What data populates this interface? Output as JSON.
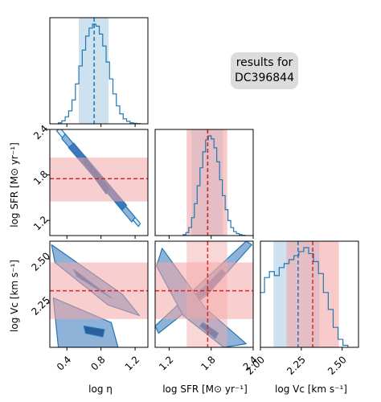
{
  "chart_data": {
    "type": "corner",
    "annotation": [
      "results for",
      "DC396844"
    ],
    "colors": {
      "posterior": "#1f77b4",
      "contour_fill": [
        "#dbe7f3",
        "#8fb2d8",
        "#3f78b9",
        "#2c5f9e"
      ],
      "reference": "#d62728",
      "reference_band": "#f4a6a6"
    },
    "parameters": [
      {
        "name": "log_eta",
        "label": "log η",
        "range": [
          0.2,
          1.35
        ],
        "ticks": [
          0.4,
          0.8,
          1.2
        ],
        "tick_labels": [
          "0.4",
          "0.8",
          "1.2"
        ],
        "median": 0.72,
        "interval": [
          0.54,
          0.89
        ]
      },
      {
        "name": "log_sfr",
        "label": "log SFR [M⊙ yr⁻¹]",
        "range": [
          1.0,
          2.4
        ],
        "ticks": [
          1.2,
          1.8,
          2.4
        ],
        "tick_labels": [
          "1.2",
          "1.8",
          "2.4"
        ],
        "median": 1.75,
        "interval": [
          1.52,
          1.97
        ],
        "reference": 1.75,
        "reference_interval": [
          1.45,
          2.03
        ]
      },
      {
        "name": "log_vc",
        "label": "log Vc [km s⁻¹]",
        "range": [
          2.0,
          2.6
        ],
        "ticks": [
          2.0,
          2.25,
          2.5
        ],
        "tick_labels": [
          "2.00",
          "2.25",
          "2.50"
        ],
        "y_ticks": [
          2.25,
          2.5
        ],
        "y_tick_labels": [
          "2.25",
          "2.50"
        ],
        "median": 2.23,
        "interval": [
          2.08,
          2.36
        ],
        "reference": 2.32,
        "reference_interval": [
          2.16,
          2.48
        ]
      }
    ],
    "histograms": {
      "log_eta": {
        "x": [
          0.32,
          0.36,
          0.4,
          0.44,
          0.48,
          0.52,
          0.56,
          0.6,
          0.64,
          0.68,
          0.72,
          0.76,
          0.8,
          0.84,
          0.88,
          0.92,
          0.96,
          1.0,
          1.04,
          1.08,
          1.12,
          1.16,
          1.2,
          1.24
        ],
        "counts": [
          0.01,
          0.03,
          0.07,
          0.13,
          0.24,
          0.4,
          0.58,
          0.74,
          0.88,
          0.96,
          1.0,
          0.98,
          0.9,
          0.78,
          0.62,
          0.45,
          0.3,
          0.18,
          0.1,
          0.05,
          0.025,
          0.01,
          0.005,
          0.002
        ]
      },
      "log_sfr": {
        "x": [
          1.42,
          1.46,
          1.5,
          1.54,
          1.58,
          1.62,
          1.66,
          1.7,
          1.74,
          1.78,
          1.82,
          1.86,
          1.9,
          1.94,
          1.98,
          2.02,
          2.06,
          2.1,
          2.14,
          2.18,
          2.22,
          2.26
        ],
        "counts": [
          0.01,
          0.03,
          0.08,
          0.18,
          0.32,
          0.5,
          0.68,
          0.84,
          0.96,
          1.0,
          0.97,
          0.88,
          0.74,
          0.56,
          0.4,
          0.26,
          0.15,
          0.08,
          0.04,
          0.02,
          0.01,
          0.003
        ]
      },
      "log_vc": {
        "x": [
          2.01,
          2.04,
          2.07,
          2.1,
          2.13,
          2.16,
          2.19,
          2.22,
          2.25,
          2.28,
          2.31,
          2.34,
          2.37,
          2.4,
          2.43,
          2.46,
          2.49,
          2.52
        ],
        "counts": [
          0.55,
          0.7,
          0.76,
          0.72,
          0.8,
          0.84,
          0.88,
          0.92,
          0.96,
          1.0,
          0.94,
          0.86,
          0.74,
          0.55,
          0.38,
          0.2,
          0.08,
          0.02
        ]
      }
    },
    "joint_contours": {
      "log_sfr_vs_log_eta": {
        "center": [
          0.72,
          1.76
        ],
        "levels": [
          [
            [
              0.28,
              2.38
            ],
            [
              1.24,
              1.12
            ],
            [
              1.26,
              1.16
            ],
            [
              0.32,
              2.42
            ]
          ],
          [
            [
              0.34,
              2.28
            ],
            [
              1.16,
              1.18
            ],
            [
              1.2,
              1.24
            ],
            [
              0.38,
              2.34
            ]
          ],
          [
            [
              0.42,
              2.16
            ],
            [
              1.05,
              1.34
            ],
            [
              1.1,
              1.4
            ],
            [
              0.48,
              2.22
            ]
          ],
          [
            [
              0.58,
              1.98
            ],
            [
              0.86,
              1.55
            ],
            [
              0.9,
              1.62
            ],
            [
              0.62,
              2.04
            ]
          ]
        ]
      },
      "log_vc_vs_log_eta": {
        "upper_mode": [
          [
            0.22,
            2.58
          ],
          [
            1.05,
            2.3
          ],
          [
            1.25,
            2.18
          ],
          [
            0.88,
            2.24
          ],
          [
            0.26,
            2.48
          ]
        ],
        "upper_core": [
          [
            0.48,
            2.44
          ],
          [
            0.86,
            2.3
          ],
          [
            0.92,
            2.28
          ],
          [
            0.52,
            2.4
          ]
        ],
        "lower_mode": [
          [
            0.24,
            2.28
          ],
          [
            0.92,
            2.14
          ],
          [
            1.0,
            2.0
          ],
          [
            0.3,
            2.0
          ]
        ],
        "lower_core": [
          [
            0.6,
            2.12
          ],
          [
            0.84,
            2.1
          ],
          [
            0.82,
            2.06
          ],
          [
            0.62,
            2.08
          ]
        ]
      },
      "log_vc_vs_log_sfr": {
        "upper_mode": [
          [
            1.05,
            2.08
          ],
          [
            1.75,
            2.3
          ],
          [
            2.38,
            2.58
          ],
          [
            2.3,
            2.6
          ],
          [
            1.7,
            2.38
          ],
          [
            1.0,
            2.12
          ]
        ],
        "upper_core": [
          [
            1.5,
            2.24
          ],
          [
            1.8,
            2.32
          ],
          [
            2.0,
            2.42
          ],
          [
            1.95,
            2.44
          ],
          [
            1.7,
            2.34
          ],
          [
            1.45,
            2.26
          ]
        ],
        "lower_mode": [
          [
            1.1,
            2.56
          ],
          [
            1.72,
            2.22
          ],
          [
            2.3,
            2.02
          ],
          [
            1.98,
            2.0
          ],
          [
            1.4,
            2.18
          ],
          [
            1.02,
            2.46
          ]
        ],
        "lower_core": [
          [
            1.68,
            2.14
          ],
          [
            1.9,
            2.08
          ],
          [
            1.86,
            2.05
          ],
          [
            1.64,
            2.12
          ]
        ]
      }
    }
  }
}
